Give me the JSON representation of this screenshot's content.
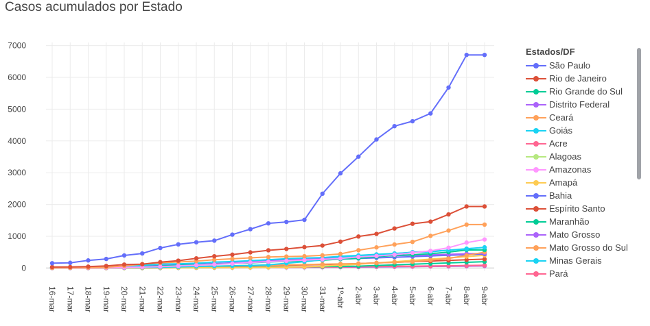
{
  "chart_data": {
    "type": "line",
    "title": "Casos acumulados por Estado",
    "legend_title": "Estados/DF",
    "legend_position": "right",
    "grid": true,
    "ylim": [
      -100,
      7100
    ],
    "yticks": [
      0,
      1000,
      2000,
      3000,
      4000,
      5000,
      6000,
      7000
    ],
    "categories": [
      "16-mar",
      "17-mar",
      "18-mar",
      "19-mar",
      "20-mar",
      "21-mar",
      "22-mar",
      "23-mar",
      "24-mar",
      "25-mar",
      "26-mar",
      "27-mar",
      "28-mar",
      "29-mar",
      "30-mar",
      "31-mar",
      "1º-abr",
      "2-abr",
      "3-abr",
      "4-abr",
      "5-abr",
      "6-abr",
      "7-abr",
      "8-abr",
      "9-abr"
    ],
    "series": [
      {
        "name": "São Paulo",
        "color": "#636efa",
        "values": [
          152,
          164,
          240,
          286,
          396,
          459,
          631,
          745,
          810,
          862,
          1052,
          1223,
          1406,
          1451,
          1517,
          2339,
          2981,
          3506,
          4048,
          4466,
          4620,
          4866,
          5682,
          6708,
          6708
        ]
      },
      {
        "name": "Rio de Janeiro",
        "color": "#dc5038",
        "values": [
          31,
          33,
          45,
          65,
          109,
          119,
          186,
          233,
          305,
          370,
          421,
          493,
          558,
          600,
          657,
          708,
          832,
          992,
          1074,
          1246,
          1394,
          1461,
          1688,
          1938,
          1938
        ]
      },
      {
        "name": "Rio Grande do Sul",
        "color": "#00cc96",
        "values": [
          6,
          8,
          12,
          19,
          28,
          43,
          64,
          83,
          98,
          117,
          140,
          164,
          190,
          210,
          230,
          245,
          281,
          306,
          357,
          396,
          418,
          451,
          501,
          569,
          569
        ]
      },
      {
        "name": "Distrito Federal",
        "color": "#ab63fa",
        "values": [
          1,
          3,
          5,
          8,
          12,
          30,
          71,
          85,
          101,
          131,
          160,
          200,
          230,
          260,
          290,
          310,
          333,
          355,
          370,
          389,
          400,
          415,
          430,
          450,
          460
        ]
      },
      {
        "name": "Ceará",
        "color": "#ffa15a",
        "values": [
          5,
          8,
          15,
          25,
          68,
          125,
          163,
          190,
          220,
          260,
          290,
          320,
          348,
          362,
          372,
          400,
          445,
          560,
          650,
          741,
          823,
          1013,
          1181,
          1367,
          1367
        ]
      },
      {
        "name": "Goiás",
        "color": "#19d3f3",
        "values": [
          3,
          5,
          8,
          12,
          18,
          22,
          27,
          35,
          50,
          60,
          70,
          80,
          100,
          150,
          200,
          260,
          330,
          380,
          420,
          450,
          500,
          530,
          560,
          600,
          650
        ]
      },
      {
        "name": "Acre",
        "color": "#ff6692",
        "values": [
          2,
          3,
          3,
          4,
          7,
          11,
          17,
          21,
          23,
          25,
          27,
          30,
          35,
          40,
          45,
          48,
          50,
          52,
          55,
          58,
          60,
          65,
          70,
          75,
          80
        ]
      },
      {
        "name": "Alagoas",
        "color": "#b6e880",
        "values": [
          1,
          1,
          2,
          3,
          4,
          6,
          8,
          11,
          13,
          15,
          17,
          20,
          22,
          25,
          28,
          30,
          33,
          35,
          38,
          40,
          45,
          50,
          55,
          60,
          65
        ]
      },
      {
        "name": "Amazonas",
        "color": "#ff97ff",
        "values": [
          2,
          3,
          5,
          10,
          20,
          30,
          45,
          65,
          90,
          110,
          140,
          175,
          200,
          225,
          250,
          270,
          300,
          350,
          380,
          420,
          480,
          540,
          640,
          800,
          899
        ]
      },
      {
        "name": "Amapá",
        "color": "#fecb52",
        "values": [
          1,
          1,
          1,
          2,
          3,
          5,
          8,
          10,
          12,
          14,
          16,
          18,
          20,
          30,
          40,
          60,
          90,
          120,
          160,
          200,
          240,
          280,
          320,
          360,
          400
        ]
      },
      {
        "name": "Bahia",
        "color": "#636efa",
        "values": [
          9,
          15,
          25,
          35,
          50,
          60,
          80,
          100,
          120,
          140,
          160,
          180,
          200,
          220,
          240,
          260,
          280,
          300,
          320,
          340,
          360,
          380,
          400,
          420,
          440
        ]
      },
      {
        "name": "Espírito Santo",
        "color": "#dc5038",
        "values": [
          1,
          2,
          3,
          5,
          10,
          15,
          20,
          30,
          40,
          50,
          60,
          70,
          80,
          90,
          100,
          110,
          120,
          140,
          160,
          180,
          200,
          220,
          240,
          260,
          280
        ]
      },
      {
        "name": "Maranhão",
        "color": "#00cc96",
        "values": [
          1,
          1,
          1,
          2,
          2,
          3,
          5,
          8,
          10,
          15,
          20,
          25,
          30,
          35,
          40,
          45,
          50,
          60,
          80,
          100,
          120,
          140,
          160,
          180,
          200
        ]
      },
      {
        "name": "Mato Grosso",
        "color": "#ab63fa",
        "values": [
          1,
          1,
          1,
          1,
          2,
          3,
          5,
          8,
          10,
          12,
          14,
          16,
          18,
          20,
          22,
          25,
          28,
          30,
          35,
          40,
          45,
          50,
          55,
          60,
          65
        ]
      },
      {
        "name": "Mato Grosso do Sul",
        "color": "#ffa15a",
        "values": [
          5,
          7,
          10,
          15,
          20,
          25,
          30,
          40,
          50,
          60,
          70,
          80,
          90,
          100,
          110,
          120,
          130,
          140,
          160,
          180,
          200,
          250,
          300,
          400,
          500
        ]
      },
      {
        "name": "Minas Gerais",
        "color": "#19d3f3",
        "values": [
          7,
          13,
          21,
          29,
          38,
          83,
          128,
          133,
          153,
          189,
          205,
          231,
          261,
          293,
          314,
          330,
          370,
          397,
          430,
          460,
          490,
          510,
          560,
          610,
          650
        ]
      },
      {
        "name": "Pará",
        "color": "#ff6692",
        "values": [
          1,
          1,
          1,
          2,
          3,
          4,
          5,
          7,
          10,
          13,
          16,
          20,
          22,
          25,
          28,
          30,
          35,
          40,
          45,
          50,
          55,
          60,
          70,
          80,
          90
        ]
      }
    ]
  }
}
